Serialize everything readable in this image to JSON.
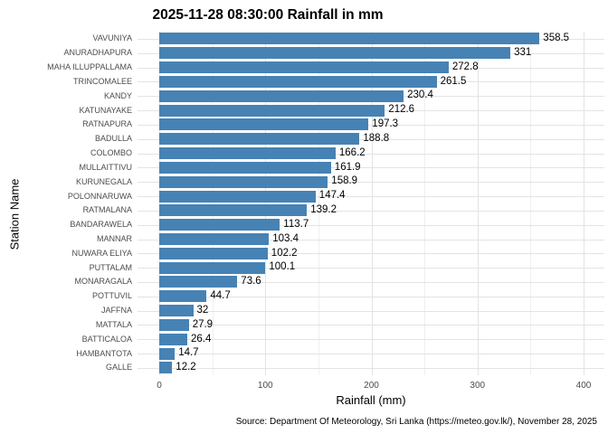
{
  "chart_data": {
    "type": "bar",
    "orientation": "horizontal",
    "title": "2025-11-28 08:30:00 Rainfall in mm",
    "xlabel": "Rainfall (mm)",
    "ylabel": "Station Name",
    "caption": "Source: Department Of Meteorology, Sri Lanka (https://meteo.gov.lk/), November 28, 2025",
    "xlim": [
      0,
      420
    ],
    "x_major_ticks": [
      0,
      100,
      200,
      300,
      400
    ],
    "x_minor_ticks": [
      50,
      150,
      250,
      350
    ],
    "grid": "major-and-minor-vertical, major-horizontal-per-category",
    "legend": "none",
    "bar_color": "#4682B4",
    "grid_major_color": "#E3E3E3",
    "grid_minor_color": "#EFEFEF",
    "axis_text_color": "#4D4D4D",
    "background_color": "#FFFFFF",
    "categories": [
      "VAVUNIYA",
      "ANURADHAPURA",
      "MAHA ILLUPPALLAMA",
      "TRINCOMALEE",
      "KANDY",
      "KATUNAYAKE",
      "RATNAPURA",
      "BADULLA",
      "COLOMBO",
      "MULLAITTIVU",
      "KURUNEGALA",
      "POLONNARUWA",
      "RATMALANA",
      "BANDARAWELA",
      "MANNAR",
      "NUWARA ELIYA",
      "PUTTALAM",
      "MONARAGALA",
      "POTTUVIL",
      "JAFFNA",
      "MATTALA",
      "BATTICALOA",
      "HAMBANTOTA",
      "GALLE"
    ],
    "values": [
      358.5,
      331,
      272.8,
      261.5,
      230.4,
      212.6,
      197.3,
      188.8,
      166.2,
      161.9,
      158.9,
      147.4,
      139.2,
      113.7,
      103.4,
      102.2,
      100.1,
      73.6,
      44.7,
      32,
      27.9,
      26.4,
      14.7,
      12.2
    ]
  }
}
